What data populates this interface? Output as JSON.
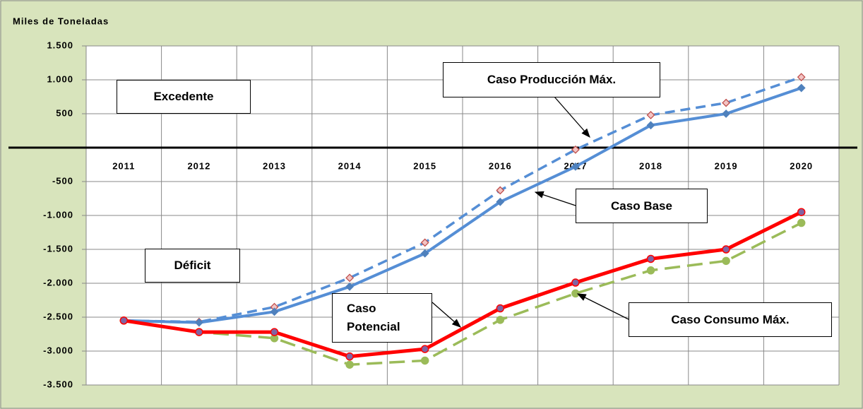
{
  "chart_data": {
    "type": "line",
    "y_label": "Miles de Toneladas",
    "categories": [
      "2011",
      "2012",
      "2013",
      "2014",
      "2015",
      "2016",
      "2017",
      "2018",
      "2019",
      "2020"
    ],
    "ylim": [
      -3500,
      1500
    ],
    "yticks": [
      {
        "value": -3500,
        "label": "-3.500"
      },
      {
        "value": -3000,
        "label": "-3.000"
      },
      {
        "value": -2500,
        "label": "-2.500"
      },
      {
        "value": -2000,
        "label": "-2.000"
      },
      {
        "value": -1500,
        "label": "-1.500"
      },
      {
        "value": -1000,
        "label": "-1.000"
      },
      -500,
      {
        "value": 0,
        "label": "-"
      },
      500,
      {
        "value": 1000,
        "label": "1.000"
      },
      {
        "value": 1500,
        "label": "1.500"
      }
    ],
    "grid": true,
    "annotations": [
      "Excedente",
      "Déficit"
    ],
    "series": [
      {
        "name": "Caso Producción Máx.",
        "color": "#558ed5",
        "values": [
          -2550,
          -2570,
          -2350,
          -1920,
          -1400,
          -630,
          -30,
          480,
          660,
          1040
        ]
      },
      {
        "name": "Caso Base",
        "color": "#558ed5",
        "values": [
          -2550,
          -2580,
          -2420,
          -2050,
          -1560,
          -800,
          -280,
          330,
          500,
          880
        ]
      },
      {
        "name": "Caso Consumo Máx.",
        "color": "#9bbb59",
        "values": [
          -2550,
          -2720,
          -2810,
          -3200,
          -3140,
          -2540,
          -2150,
          -1810,
          -1670,
          -1110
        ]
      },
      {
        "name": "Caso Potencial",
        "color": "#ff0000",
        "values": [
          -2550,
          -2720,
          -2720,
          -3080,
          -2970,
          -2370,
          -1990,
          -1640,
          -1500,
          -950
        ]
      }
    ]
  }
}
